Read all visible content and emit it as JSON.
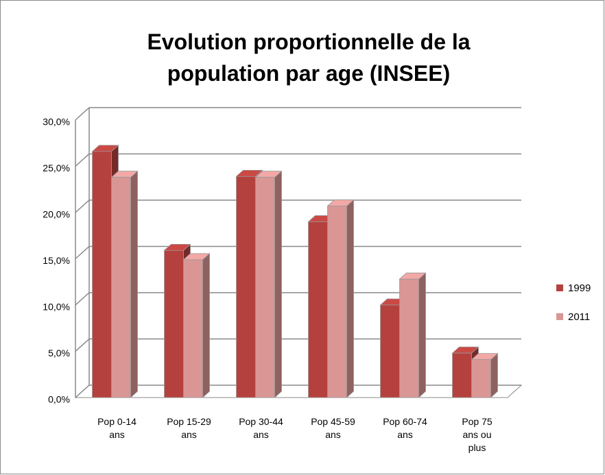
{
  "chart_data": {
    "type": "bar3d",
    "title": "Evolution proportionnelle de la population par age (INSEE)",
    "categories": [
      "Pop 0-14 ans",
      "Pop 15-29 ans",
      "Pop 30-44 ans",
      "Pop 45-59 ans",
      "Pop 60-74 ans",
      "Pop 75 ans ou plus"
    ],
    "series": [
      {
        "name": "1999",
        "color": "#b5413e",
        "values": [
          26.6,
          15.9,
          23.9,
          19.0,
          10.0,
          4.8
        ]
      },
      {
        "name": "2011",
        "color": "#d99694",
        "values": [
          23.8,
          14.9,
          23.8,
          20.7,
          12.8,
          4.1
        ]
      }
    ],
    "ylim": [
      0,
      30
    ],
    "yticks": [
      {
        "value": 0,
        "label": "0,0%"
      },
      {
        "value": 5,
        "label": "5,0%"
      },
      {
        "value": 10,
        "label": "10,0%"
      },
      {
        "value": 15,
        "label": "15,0%"
      },
      {
        "value": 20,
        "label": "20,0%"
      },
      {
        "value": 25,
        "label": "25,0%"
      },
      {
        "value": 30,
        "label": "30,0%"
      }
    ],
    "grid": true,
    "legend": "right"
  }
}
